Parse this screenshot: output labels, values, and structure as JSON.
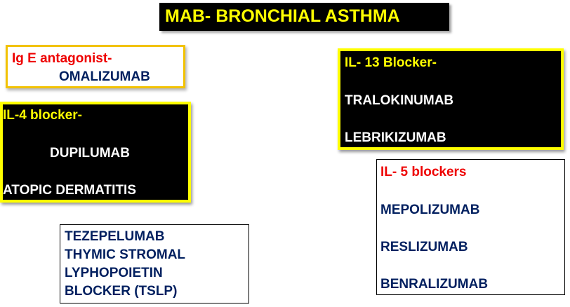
{
  "title": "MAB- BRONCHIAL ASTHMA",
  "ige_box": {
    "heading": "Ig E antagonist-",
    "drug": "OMALIZUMAB"
  },
  "il4_box": {
    "heading": "IL-4 blocker-",
    "drug": "DUPILUMAB",
    "note": "ATOPIC DERMATITIS"
  },
  "il13_box": {
    "heading": "IL- 13 Blocker-",
    "drugs": [
      "TRALOKINUMAB",
      "LEBRIKIZUMAB"
    ]
  },
  "il5_box": {
    "heading": "IL- 5 blockers",
    "drugs": [
      "MEPOLIZUMAB",
      "RESLIZUMAB",
      "BENRALIZUMAB"
    ]
  },
  "teze_box": {
    "lines": [
      "TEZEPELUMAB",
      "THYMIC STROMAL",
      "LYPHOPOIETIN",
      "BLOCKER (TSLP)"
    ]
  },
  "colors": {
    "title_background": "#000000",
    "title_text": "#ffff00",
    "heading_red": "#ee0000",
    "heading_yellow": "#ffff00",
    "drug_navy": "#001f5f",
    "drug_white": "#ffffff",
    "box_border_gold": "#f2c200",
    "box_border_yellow": "#ffff00"
  }
}
